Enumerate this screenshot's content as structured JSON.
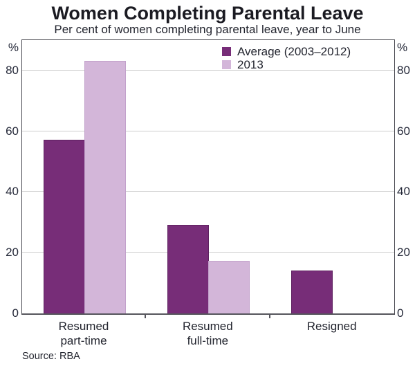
{
  "title": "Women Completing Parental Leave",
  "subtitle": "Per cent of women completing parental leave, year to June",
  "source": "Source: RBA",
  "colors": {
    "series_dark": "#772d78",
    "series_light": "#d3b6d9",
    "gridline": "#cccccc",
    "frame": "#46464e",
    "text": "#22242e"
  },
  "axis": {
    "unit_label": "%",
    "ticks": [
      0,
      20,
      40,
      60,
      80
    ],
    "ymax": 90
  },
  "chart_data": {
    "type": "bar",
    "title": "Women Completing Parental Leave",
    "subtitle": "Per cent of women completing parental leave, year to June",
    "categories": [
      "Resumed part-time",
      "Resumed full-time",
      "Resigned"
    ],
    "category_lines": [
      [
        "Resumed",
        "part-time"
      ],
      [
        "Resumed",
        "full-time"
      ],
      [
        "Resigned"
      ]
    ],
    "series": [
      {
        "name": "Average (2003–2012)",
        "color": "#772d78",
        "values": [
          57,
          29,
          14
        ]
      },
      {
        "name": "2013",
        "color": "#d3b6d9",
        "values": [
          83,
          17,
          null
        ]
      }
    ],
    "xlabel": "",
    "ylabel": "%",
    "ylim": [
      0,
      90
    ],
    "grid": true,
    "legend_position": "top-center-right",
    "source": "Source: RBA"
  }
}
